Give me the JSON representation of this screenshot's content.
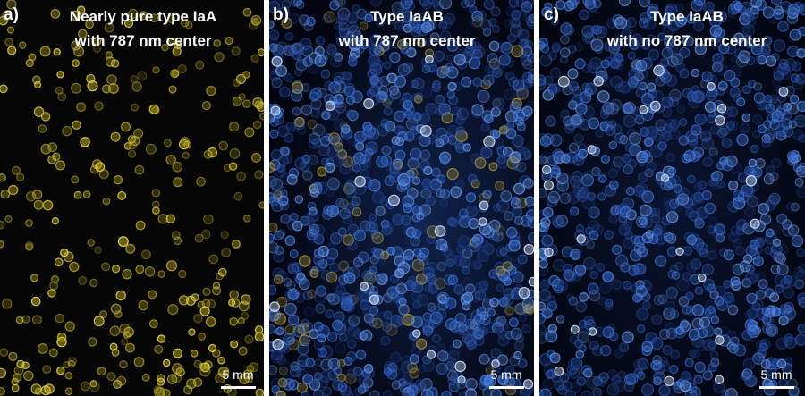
{
  "panels": [
    {
      "label": "a)",
      "title": [
        "Nearly pure type IaA",
        "with 787 nm center"
      ],
      "scale_bar": "5 mm"
    },
    {
      "label": "b)",
      "title": [
        "Type IaAB",
        "with 787 nm center"
      ],
      "scale_bar": "5 mm"
    },
    {
      "label": "c)",
      "title": [
        "Type IaAB",
        "with no 787 nm center"
      ],
      "scale_bar": "5 mm"
    }
  ]
}
